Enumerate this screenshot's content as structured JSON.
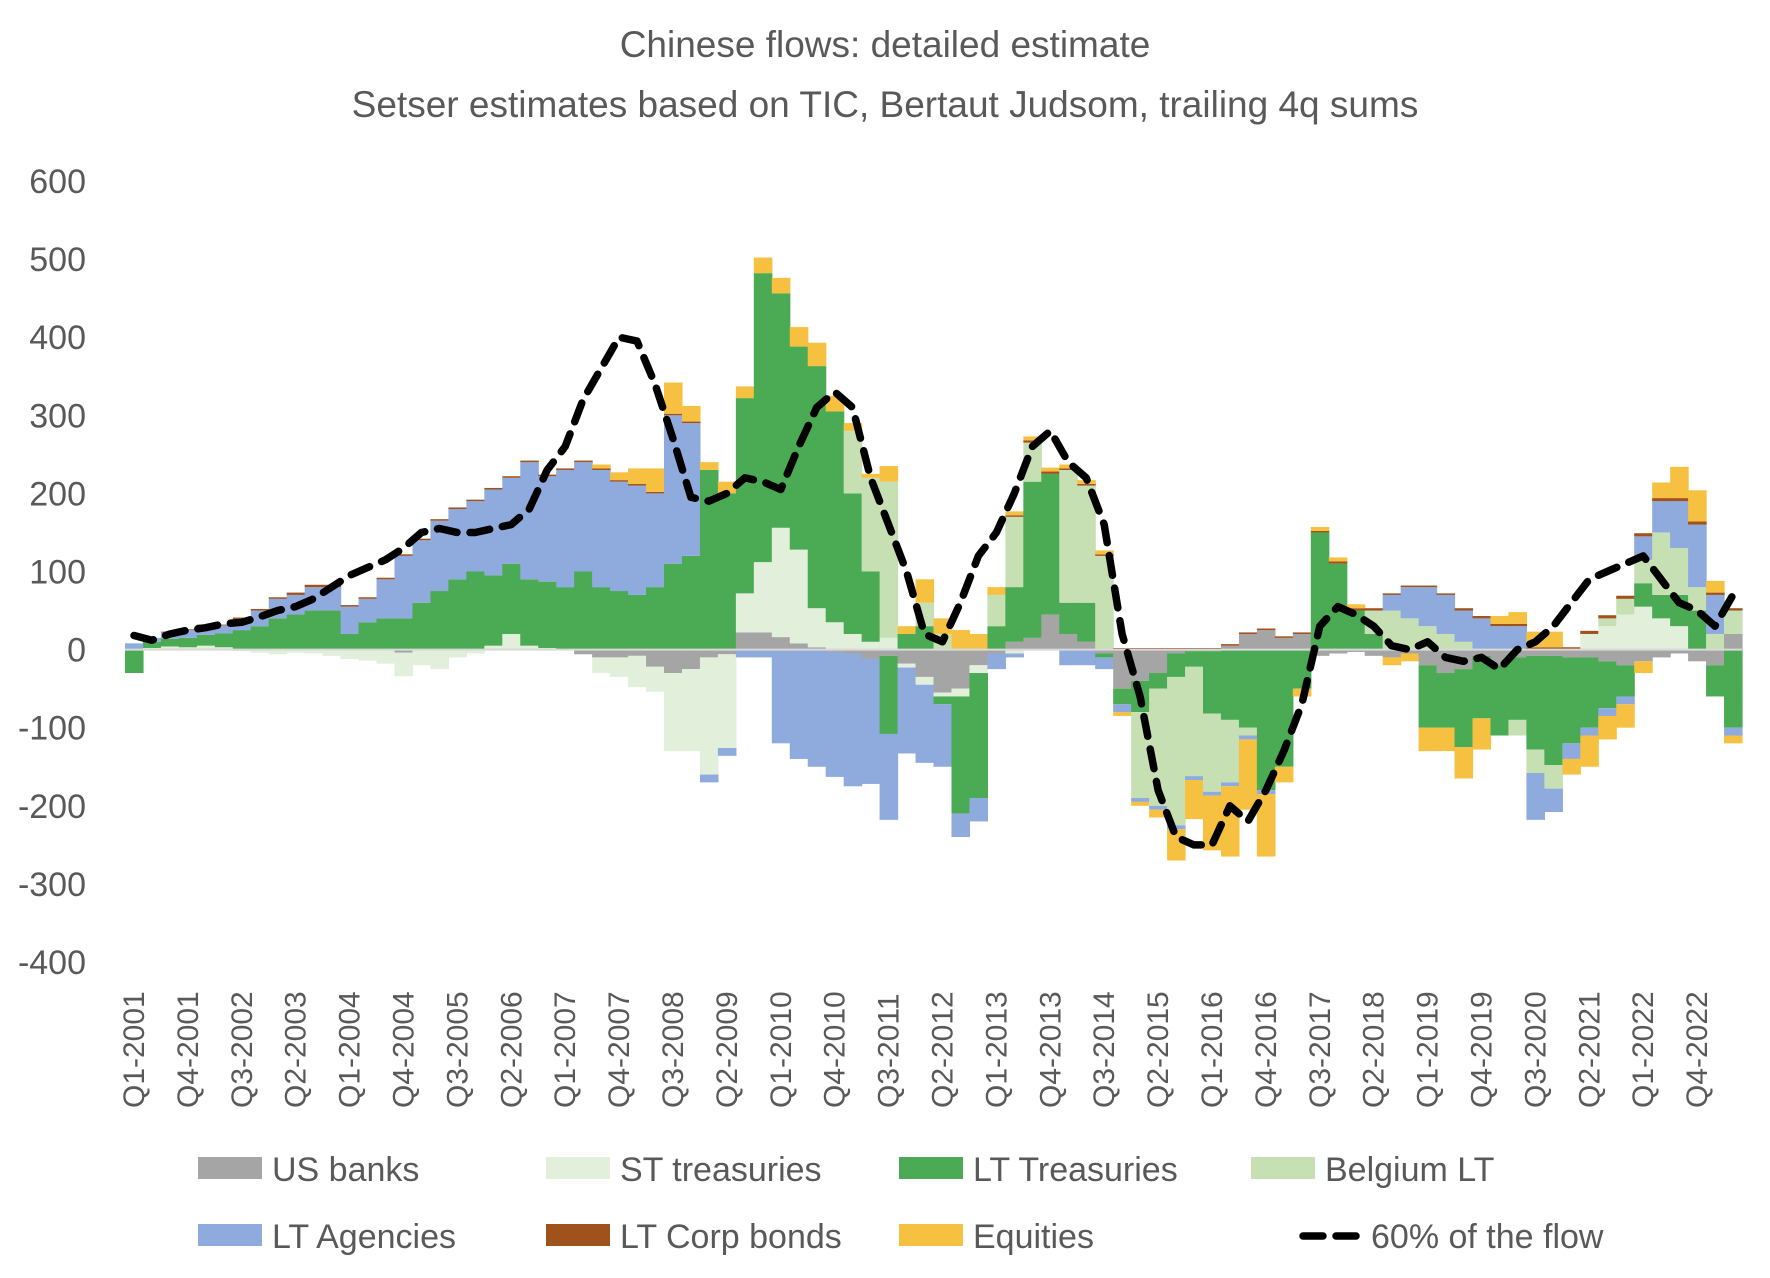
{
  "chart_data": {
    "type": "bar",
    "stacked": true,
    "title": "Chinese flows: detailed estimate",
    "subtitle": "Setser estimates based on TIC, Bertaut Judsom, trailing 4q sums",
    "xlabel": "",
    "ylabel": "",
    "ylim": [
      -400,
      600
    ],
    "yticks": [
      600,
      500,
      400,
      300,
      200,
      100,
      0,
      -100,
      -200,
      -300,
      -400
    ],
    "grid": false,
    "legend_position": "bottom",
    "x": [
      "Q1-2001",
      "Q2-2001",
      "Q3-2001",
      "Q4-2001",
      "Q1-2002",
      "Q2-2002",
      "Q3-2002",
      "Q4-2002",
      "Q1-2003",
      "Q2-2003",
      "Q3-2003",
      "Q4-2003",
      "Q1-2004",
      "Q2-2004",
      "Q3-2004",
      "Q4-2004",
      "Q1-2005",
      "Q2-2005",
      "Q3-2005",
      "Q4-2005",
      "Q1-2006",
      "Q2-2006",
      "Q3-2006",
      "Q4-2006",
      "Q1-2007",
      "Q2-2007",
      "Q3-2007",
      "Q4-2007",
      "Q1-2008",
      "Q2-2008",
      "Q3-2008",
      "Q4-2008",
      "Q1-2009",
      "Q2-2009",
      "Q3-2009",
      "Q4-2009",
      "Q1-2010",
      "Q2-2010",
      "Q3-2010",
      "Q4-2010",
      "Q1-2011",
      "Q2-2011",
      "Q3-2011",
      "Q4-2011",
      "Q1-2012",
      "Q2-2012",
      "Q3-2012",
      "Q4-2012",
      "Q1-2013",
      "Q2-2013",
      "Q3-2013",
      "Q4-2013",
      "Q1-2014",
      "Q2-2014",
      "Q3-2014",
      "Q4-2014",
      "Q1-2015",
      "Q2-2015",
      "Q3-2015",
      "Q4-2015",
      "Q1-2016",
      "Q2-2016",
      "Q3-2016",
      "Q4-2016",
      "Q1-2017",
      "Q2-2017",
      "Q3-2017",
      "Q4-2017",
      "Q1-2018",
      "Q2-2018",
      "Q3-2018",
      "Q4-2018",
      "Q1-2019",
      "Q2-2019",
      "Q3-2019",
      "Q4-2019",
      "Q1-2020",
      "Q2-2020",
      "Q3-2020",
      "Q4-2020",
      "Q1-2021",
      "Q2-2021",
      "Q3-2021",
      "Q4-2021",
      "Q1-2022",
      "Q2-2022",
      "Q3-2022",
      "Q4-2022",
      "Q1-2023",
      "Q2-2023"
    ],
    "x_tick_labels": [
      "Q1-2001",
      "Q4-2001",
      "Q3-2002",
      "Q2-2003",
      "Q1-2004",
      "Q4-2004",
      "Q3-2005",
      "Q2-2006",
      "Q1-2007",
      "Q4-2007",
      "Q3-2008",
      "Q2-2009",
      "Q1-2010",
      "Q4-2010",
      "Q3-2011",
      "Q2-2012",
      "Q1-2013",
      "Q4-2013",
      "Q3-2014",
      "Q2-2015",
      "Q1-2016",
      "Q4-2016",
      "Q3-2017",
      "Q2-2018",
      "Q1-2019",
      "Q4-2019",
      "Q3-2020",
      "Q2-2021",
      "Q1-2022",
      "Q4-2022"
    ],
    "series": [
      {
        "name": "US banks",
        "kind": "bar",
        "color": "#a5a5a5",
        "values": [
          0,
          0,
          0,
          0,
          0,
          0,
          0,
          0,
          0,
          0,
          0,
          0,
          0,
          0,
          0,
          -4,
          0,
          0,
          0,
          0,
          0,
          0,
          0,
          0,
          0,
          -6,
          -10,
          -10,
          -8,
          -22,
          -30,
          -25,
          -10,
          -6,
          22,
          22,
          16,
          8,
          3,
          -3,
          -5,
          -12,
          -8,
          -18,
          -35,
          -55,
          -50,
          -20,
          -5,
          10,
          15,
          45,
          20,
          10,
          -5,
          -50,
          -40,
          -30,
          -5,
          -2,
          -2,
          5,
          20,
          25,
          15,
          20,
          -8,
          -5,
          -3,
          -8,
          -10,
          -5,
          -20,
          -30,
          -25,
          -8,
          -20,
          -10,
          -8,
          -8,
          -10,
          -10,
          -15,
          -20,
          -15,
          -10,
          -5,
          -15,
          -20,
          20
        ],
        "value_note": "US banks plotted as base segment"
      },
      {
        "name": "ST treasuries",
        "kind": "bar",
        "color": "#e2efda",
        "values": [
          0,
          2,
          4,
          3,
          5,
          3,
          -2,
          -4,
          -6,
          -4,
          -5,
          -8,
          -12,
          -14,
          -18,
          -30,
          -20,
          -25,
          -10,
          -5,
          5,
          20,
          5,
          2,
          0,
          0,
          -20,
          -25,
          -40,
          -32,
          -100,
          -105,
          -150,
          -120,
          50,
          90,
          140,
          120,
          50,
          35,
          20,
          10,
          15,
          -5,
          -10,
          -5,
          -10,
          -10,
          0,
          -5,
          0,
          0,
          0,
          0,
          0,
          0,
          0,
          0,
          0,
          0,
          0,
          0,
          0,
          0,
          0,
          0,
          0,
          0,
          0,
          0,
          0,
          0,
          0,
          0,
          0,
          0,
          0,
          0,
          0,
          0,
          0,
          20,
          30,
          45,
          55,
          40,
          30,
          0,
          0,
          0
        ],
        "value_note": "ST treasuries"
      },
      {
        "name": "LT Treasuries",
        "kind": "bar",
        "color": "#4aab54",
        "values": [
          -30,
          8,
          10,
          12,
          14,
          18,
          25,
          30,
          40,
          45,
          50,
          50,
          20,
          35,
          40,
          40,
          60,
          75,
          90,
          100,
          90,
          90,
          85,
          85,
          80,
          100,
          80,
          75,
          70,
          80,
          110,
          120,
          230,
          200,
          250,
          370,
          300,
          260,
          310,
          270,
          180,
          90,
          -100,
          20,
          30,
          -10,
          -150,
          -160,
          30,
          70,
          200,
          180,
          40,
          50,
          -5,
          -20,
          -40,
          -20,
          -30,
          -20,
          -80,
          -90,
          -100,
          -180,
          -150,
          -50,
          150,
          110,
          50,
          20,
          0,
          0,
          -80,
          -70,
          -100,
          -80,
          -90,
          -80,
          -120,
          -140,
          -110,
          -90,
          -60,
          -40,
          30,
          30,
          40,
          50,
          -40,
          -100
        ],
        "value_note": "LT Treasuries"
      },
      {
        "name": "Belgium LT",
        "kind": "bar",
        "color": "#c6e0b4",
        "values": [
          0,
          0,
          0,
          0,
          0,
          0,
          0,
          0,
          0,
          0,
          0,
          0,
          0,
          0,
          0,
          0,
          0,
          0,
          0,
          0,
          0,
          0,
          0,
          0,
          0,
          0,
          0,
          0,
          0,
          0,
          0,
          0,
          0,
          0,
          0,
          0,
          0,
          0,
          0,
          0,
          80,
          120,
          200,
          0,
          30,
          20,
          0,
          0,
          40,
          90,
          50,
          0,
          170,
          150,
          120,
          0,
          -110,
          -150,
          -190,
          -140,
          -100,
          -80,
          -10,
          0,
          0,
          0,
          0,
          0,
          0,
          30,
          50,
          40,
          30,
          20,
          10,
          0,
          0,
          -20,
          -30,
          -30,
          0,
          0,
          10,
          20,
          30,
          80,
          60,
          30,
          20,
          30
        ],
        "value_note": "Belgium LT"
      },
      {
        "name": "LT Agencies",
        "kind": "bar",
        "color": "#8faadc",
        "values": [
          8,
          5,
          8,
          10,
          12,
          10,
          14,
          20,
          25,
          25,
          30,
          30,
          35,
          30,
          50,
          80,
          80,
          90,
          90,
          90,
          110,
          110,
          150,
          135,
          150,
          140,
          150,
          140,
          140,
          120,
          190,
          170,
          -10,
          -10,
          -10,
          -10,
          -120,
          -140,
          -150,
          -160,
          -170,
          -160,
          -110,
          -110,
          -100,
          -80,
          -30,
          -30,
          -20,
          -5,
          0,
          0,
          -20,
          -20,
          -15,
          -10,
          -5,
          -5,
          -5,
          -5,
          -5,
          -5,
          -5,
          -5,
          0,
          0,
          0,
          0,
          0,
          0,
          20,
          40,
          50,
          50,
          40,
          40,
          30,
          30,
          -60,
          -30,
          -20,
          -10,
          -10,
          -10,
          30,
          40,
          60,
          80,
          50,
          -10
        ],
        "value_note": "LT Agencies"
      },
      {
        "name": "LT Corp bonds",
        "kind": "bar",
        "color": "#a0521d",
        "values": [
          0,
          0,
          1,
          1,
          1,
          1,
          2,
          2,
          2,
          3,
          3,
          3,
          2,
          2,
          2,
          2,
          2,
          2,
          2,
          2,
          2,
          2,
          2,
          2,
          2,
          2,
          2,
          2,
          2,
          2,
          2,
          2,
          0,
          0,
          0,
          0,
          0,
          0,
          0,
          0,
          0,
          0,
          0,
          0,
          0,
          0,
          0,
          0,
          0,
          2,
          3,
          3,
          2,
          2,
          2,
          2,
          2,
          2,
          2,
          2,
          2,
          2,
          2,
          2,
          2,
          2,
          2,
          3,
          3,
          3,
          2,
          2,
          2,
          2,
          3,
          3,
          3,
          3,
          3,
          3,
          3,
          4,
          4,
          4,
          4,
          4,
          4,
          4,
          3,
          3
        ],
        "value_note": "LT Corp bonds"
      },
      {
        "name": "Equities",
        "kind": "bar",
        "color": "#f6c141",
        "values": [
          0,
          0,
          0,
          0,
          0,
          0,
          0,
          0,
          0,
          0,
          0,
          0,
          0,
          0,
          0,
          0,
          0,
          0,
          0,
          0,
          0,
          0,
          0,
          0,
          0,
          0,
          5,
          10,
          20,
          30,
          40,
          20,
          10,
          15,
          15,
          20,
          20,
          25,
          30,
          20,
          10,
          5,
          20,
          10,
          30,
          20,
          25,
          20,
          10,
          5,
          5,
          5,
          5,
          5,
          5,
          -5,
          -5,
          -10,
          -40,
          -50,
          -70,
          -90,
          -90,
          -80,
          -20,
          -10,
          5,
          5,
          5,
          0,
          -10,
          -10,
          -30,
          -30,
          -40,
          -40,
          10,
          15,
          20,
          20,
          -20,
          -40,
          -30,
          -30,
          -15,
          20,
          40,
          40,
          15,
          -10
        ],
        "value_note": "Equities"
      },
      {
        "name": "60% of the flow",
        "kind": "line",
        "color": "#000000",
        "dash": true,
        "values": [
          18,
          12,
          20,
          25,
          28,
          33,
          35,
          42,
          50,
          55,
          65,
          80,
          95,
          105,
          115,
          130,
          150,
          155,
          150,
          150,
          155,
          160,
          180,
          230,
          260,
          320,
          360,
          400,
          395,
          340,
          270,
          195,
          190,
          200,
          220,
          215,
          205,
          260,
          310,
          330,
          310,
          220,
          160,
          100,
          20,
          10,
          60,
          120,
          150,
          200,
          260,
          280,
          240,
          220,
          160,
          20,
          -60,
          -180,
          -240,
          -250,
          -250,
          -200,
          -220,
          -180,
          -130,
          -70,
          30,
          55,
          45,
          30,
          5,
          0,
          10,
          -10,
          -15,
          -10,
          -25,
          0,
          10,
          30,
          60,
          90,
          100,
          110,
          120,
          90,
          60,
          50,
          30,
          70
        ],
        "value_note": "60% of the flow"
      }
    ],
    "legend": [
      {
        "name": "US banks",
        "symbol": "box"
      },
      {
        "name": "ST treasuries",
        "symbol": "box"
      },
      {
        "name": "LT Treasuries",
        "symbol": "box"
      },
      {
        "name": "Belgium LT",
        "symbol": "box"
      },
      {
        "name": "LT Agencies",
        "symbol": "box"
      },
      {
        "name": "LT Corp bonds",
        "symbol": "box"
      },
      {
        "name": "Equities",
        "symbol": "box"
      },
      {
        "name": "60% of the flow",
        "symbol": "dash"
      }
    ]
  }
}
